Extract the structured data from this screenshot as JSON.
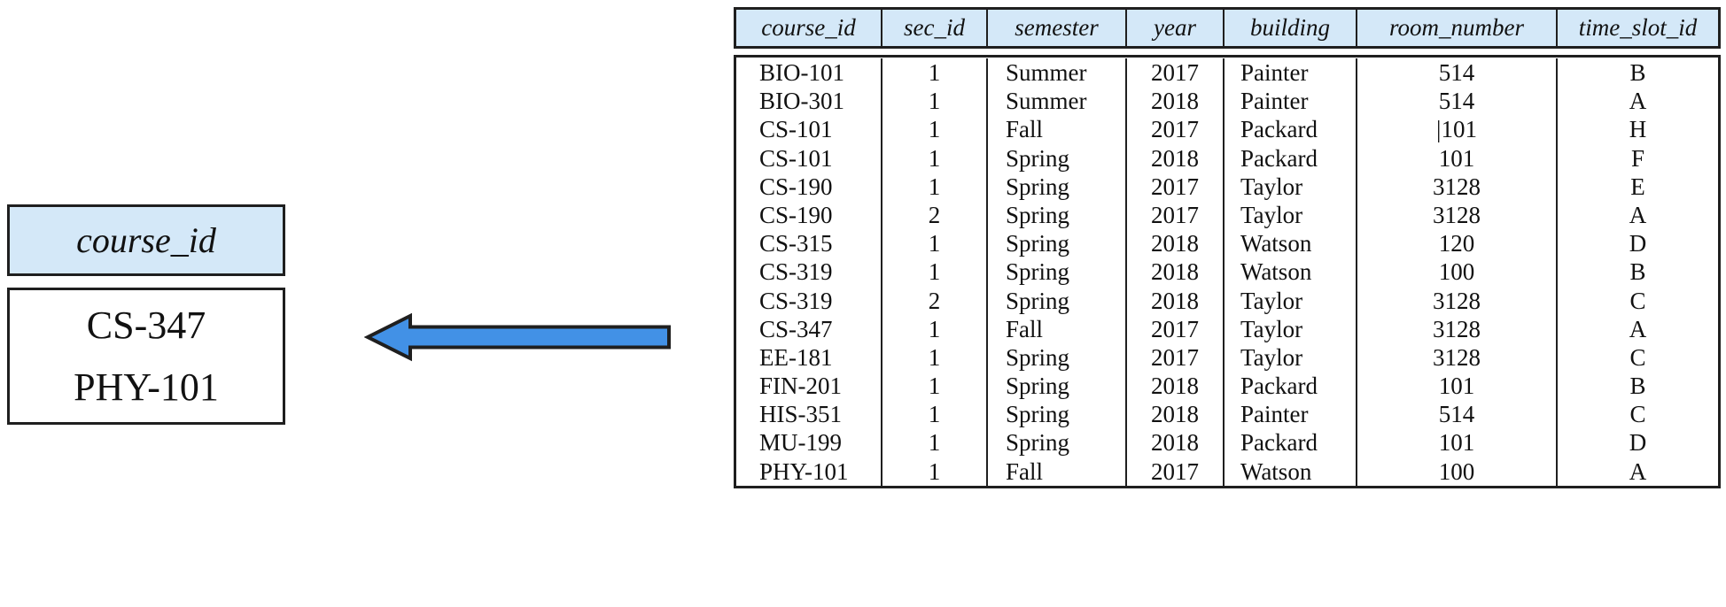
{
  "colors": {
    "header_fill": "#d4e8f8",
    "border": "#1f1f1f",
    "arrow_fill": "#4291e6",
    "text": "#111111"
  },
  "result_table": {
    "header": "course_id",
    "rows": [
      "CS-347",
      "PHY-101"
    ]
  },
  "arrow": {
    "direction": "left"
  },
  "section_table": {
    "columns": [
      "course_id",
      "sec_id",
      "semester",
      "year",
      "building",
      "room_number",
      "time_slot_id"
    ],
    "rows": [
      [
        "BIO-101",
        "1",
        "Summer",
        "2017",
        "Painter",
        "514",
        "B"
      ],
      [
        "BIO-301",
        "1",
        "Summer",
        "2018",
        "Painter",
        "514",
        "A"
      ],
      [
        "CS-101",
        "1",
        "Fall",
        "2017",
        "Packard",
        "|101",
        "H"
      ],
      [
        "CS-101",
        "1",
        "Spring",
        "2018",
        "Packard",
        "101",
        "F"
      ],
      [
        "CS-190",
        "1",
        "Spring",
        "2017",
        "Taylor",
        "3128",
        "E"
      ],
      [
        "CS-190",
        "2",
        "Spring",
        "2017",
        "Taylor",
        "3128",
        "A"
      ],
      [
        "CS-315",
        "1",
        "Spring",
        "2018",
        "Watson",
        "120",
        "D"
      ],
      [
        "CS-319",
        "1",
        "Spring",
        "2018",
        "Watson",
        "100",
        "B"
      ],
      [
        "CS-319",
        "2",
        "Spring",
        "2018",
        "Taylor",
        "3128",
        "C"
      ],
      [
        "CS-347",
        "1",
        "Fall",
        "2017",
        "Taylor",
        "3128",
        "A"
      ],
      [
        "EE-181",
        "1",
        "Spring",
        "2017",
        "Taylor",
        "3128",
        "C"
      ],
      [
        "FIN-201",
        "1",
        "Spring",
        "2018",
        "Packard",
        "101",
        "B"
      ],
      [
        "HIS-351",
        "1",
        "Spring",
        "2018",
        "Painter",
        "514",
        "C"
      ],
      [
        "MU-199",
        "1",
        "Spring",
        "2018",
        "Packard",
        "101",
        "D"
      ],
      [
        "PHY-101",
        "1",
        "Fall",
        "2017",
        "Watson",
        "100",
        "A"
      ]
    ]
  }
}
